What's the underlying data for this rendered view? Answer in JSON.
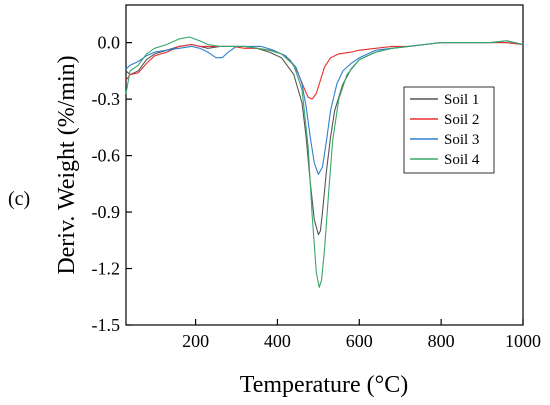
{
  "panel_label": "(c)",
  "chart_data": {
    "type": "line",
    "title": "",
    "xlabel": "Temperature (°C)",
    "ylabel": "Deriv. Weight (%/min)",
    "xlim": [
      30,
      1000
    ],
    "ylim": [
      -1.5,
      0.2
    ],
    "xticks": [
      200,
      400,
      600,
      800,
      1000
    ],
    "yticks": [
      0.0,
      -0.3,
      -0.6,
      -0.9,
      -1.2,
      -1.5
    ],
    "xtick_labels": [
      "200",
      "400",
      "600",
      "800",
      "1000"
    ],
    "ytick_labels": [
      "0.0",
      "-0.3",
      "-0.6",
      "-0.9",
      "-1.2",
      "-1.5"
    ],
    "legend_position": "center-right",
    "grid": false,
    "series": [
      {
        "name": "Soil 1",
        "color": "#555555",
        "x": [
          30,
          40,
          60,
          80,
          100,
          130,
          160,
          190,
          210,
          230,
          260,
          290,
          320,
          350,
          380,
          410,
          440,
          460,
          470,
          480,
          490,
          500,
          505,
          510,
          520,
          530,
          540,
          560,
          580,
          600,
          640,
          680,
          720,
          760,
          800,
          840,
          880,
          920,
          960,
          1000
        ],
        "y": [
          -0.15,
          -0.17,
          -0.15,
          -0.09,
          -0.06,
          -0.04,
          -0.02,
          -0.01,
          -0.02,
          -0.03,
          -0.02,
          -0.02,
          -0.02,
          -0.03,
          -0.05,
          -0.08,
          -0.17,
          -0.32,
          -0.5,
          -0.74,
          -0.94,
          -1.02,
          -1.0,
          -0.9,
          -0.68,
          -0.5,
          -0.36,
          -0.22,
          -0.14,
          -0.09,
          -0.05,
          -0.03,
          -0.02,
          -0.01,
          0.0,
          0.0,
          0.0,
          0.0,
          0.0,
          -0.01
        ]
      },
      {
        "name": "Soil 2",
        "color": "#e8302e",
        "x": [
          30,
          40,
          60,
          80,
          100,
          130,
          160,
          190,
          210,
          230,
          260,
          290,
          320,
          350,
          380,
          410,
          430,
          450,
          465,
          475,
          485,
          495,
          505,
          515,
          530,
          550,
          580,
          600,
          640,
          680,
          720,
          760,
          800,
          840,
          880,
          920,
          960,
          1000
        ],
        "y": [
          -0.2,
          -0.17,
          -0.16,
          -0.11,
          -0.07,
          -0.05,
          -0.02,
          -0.01,
          -0.02,
          -0.02,
          -0.02,
          -0.02,
          -0.03,
          -0.03,
          -0.04,
          -0.06,
          -0.09,
          -0.16,
          -0.24,
          -0.29,
          -0.3,
          -0.27,
          -0.2,
          -0.13,
          -0.08,
          -0.06,
          -0.05,
          -0.04,
          -0.03,
          -0.02,
          -0.02,
          -0.01,
          0.0,
          0.0,
          0.0,
          0.0,
          0.0,
          -0.01
        ]
      },
      {
        "name": "Soil 3",
        "color": "#2f7fd0",
        "x": [
          30,
          40,
          60,
          80,
          100,
          130,
          160,
          190,
          210,
          230,
          250,
          265,
          280,
          300,
          330,
          360,
          390,
          420,
          445,
          460,
          470,
          480,
          490,
          500,
          510,
          520,
          530,
          545,
          560,
          580,
          600,
          640,
          680,
          720,
          760,
          800,
          840,
          880,
          920,
          960,
          1000
        ],
        "y": [
          -0.14,
          -0.12,
          -0.1,
          -0.07,
          -0.05,
          -0.04,
          -0.03,
          -0.02,
          -0.03,
          -0.05,
          -0.08,
          -0.08,
          -0.05,
          -0.02,
          -0.02,
          -0.02,
          -0.04,
          -0.07,
          -0.13,
          -0.22,
          -0.34,
          -0.5,
          -0.64,
          -0.7,
          -0.66,
          -0.52,
          -0.36,
          -0.22,
          -0.15,
          -0.11,
          -0.08,
          -0.04,
          -0.03,
          -0.02,
          -0.01,
          0.0,
          0.0,
          0.0,
          0.0,
          0.01,
          -0.01
        ]
      },
      {
        "name": "Soil 4",
        "color": "#3aa66a",
        "x": [
          30,
          40,
          60,
          80,
          100,
          130,
          160,
          185,
          210,
          230,
          260,
          290,
          320,
          350,
          380,
          410,
          440,
          460,
          475,
          485,
          495,
          502,
          508,
          515,
          525,
          535,
          550,
          570,
          600,
          640,
          680,
          720,
          760,
          800,
          840,
          880,
          920,
          960,
          1000
        ],
        "y": [
          -0.27,
          -0.15,
          -0.12,
          -0.06,
          -0.03,
          -0.01,
          0.02,
          0.03,
          0.01,
          -0.01,
          -0.02,
          -0.02,
          -0.02,
          -0.03,
          -0.04,
          -0.06,
          -0.12,
          -0.25,
          -0.55,
          -0.92,
          -1.22,
          -1.3,
          -1.26,
          -1.1,
          -0.8,
          -0.52,
          -0.3,
          -0.17,
          -0.09,
          -0.05,
          -0.03,
          -0.02,
          -0.01,
          0.0,
          0.0,
          0.0,
          0.0,
          0.01,
          -0.01
        ]
      }
    ]
  }
}
